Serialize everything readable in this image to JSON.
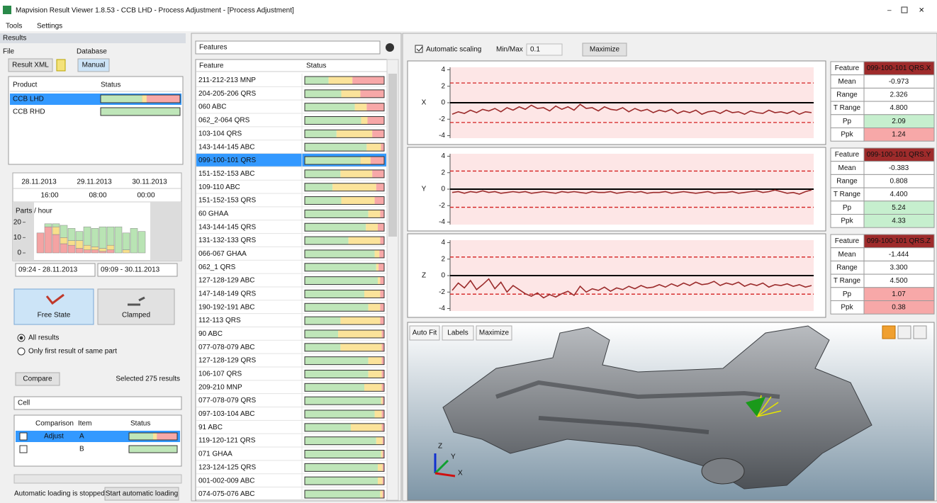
{
  "window": {
    "title": "Mapvision Result Viewer 1.8.53 - CCB LHD - Process Adjustment - [Process Adjustment]",
    "menu": [
      "Tools",
      "Settings"
    ]
  },
  "status_colors": [
    "#bfe6b9",
    "#fbe39a",
    "#f7a8a8"
  ],
  "results": {
    "title": "Results",
    "file_label": "File",
    "database_label": "Database",
    "result_xml": "Result XML",
    "manual": "Manual",
    "product_table": {
      "headers": [
        "Product",
        "Status"
      ],
      "selected": 0,
      "rows": [
        {
          "name": "CCB LHD",
          "status": [
            52,
            6,
            42
          ]
        },
        {
          "name": "CCB RHD",
          "status": [
            100,
            0,
            0
          ]
        }
      ]
    },
    "timeline": {
      "dates": [
        "28.11.2013",
        "29.11.2013",
        "30.11.2013"
      ],
      "times": [
        "16:00",
        "08:00",
        "00:00"
      ],
      "chart": {
        "type": "bar",
        "stacked": true,
        "ylabel": "Parts / hour",
        "ylim": [
          0,
          24
        ],
        "yticks": [
          0,
          10,
          20
        ],
        "series": [
          {
            "color": "#f4a3a3",
            "values": [
              13,
              17,
              12,
              6,
              5,
              3,
              2,
              2,
              1,
              2,
              0,
              0,
              0,
              0
            ]
          },
          {
            "color": "#f7df8a",
            "values": [
              0,
              0,
              5,
              4,
              3,
              5,
              3,
              2,
              2,
              3,
              0,
              2,
              0,
              0
            ]
          },
          {
            "color": "#b9e4b4",
            "values": [
              0,
              2,
              2,
              8,
              8,
              6,
              12,
              12,
              14,
              12,
              17,
              11,
              16,
              14
            ]
          }
        ]
      }
    },
    "date_from": "09:24 - 28.11.2013",
    "date_to": "09:09 - 30.11.2013",
    "modes": [
      "Free State",
      "Clamped"
    ],
    "radios": [
      "All results",
      "Only first result of same part"
    ],
    "compare": "Compare",
    "selected_results": "Selected 275 results",
    "cell": "Cell",
    "comparison_table": {
      "headers": [
        "Comparison",
        "Item",
        "Status"
      ],
      "rows": [
        {
          "comparison": "Adjust",
          "item": "A",
          "status": [
            50,
            8,
            42
          ]
        },
        {
          "comparison": null,
          "item": "B",
          "status": [
            100,
            0,
            0
          ]
        }
      ]
    },
    "loading_status": "Automatic loading is stopped",
    "start_loading": "Start automatic loading"
  },
  "features": {
    "dropdown": "Features",
    "headers": [
      "Feature",
      "Status"
    ],
    "selected": 6,
    "rows": [
      {
        "name": "211-212-213 MNP",
        "status": [
          30,
          30,
          40
        ]
      },
      {
        "name": "204-205-206 QRS",
        "status": [
          46,
          24,
          30
        ]
      },
      {
        "name": "060 ABC",
        "status": [
          63,
          15,
          22
        ]
      },
      {
        "name": "062_2-064 QRS",
        "status": [
          71,
          8,
          21
        ]
      },
      {
        "name": "103-104 QRS",
        "status": [
          40,
          45,
          15
        ]
      },
      {
        "name": "143-144-145 ABC",
        "status": [
          78,
          18,
          4
        ]
      },
      {
        "name": "099-100-101 QRS",
        "status": [
          70,
          13,
          17
        ]
      },
      {
        "name": "151-152-153 ABC",
        "status": [
          45,
          40,
          15
        ]
      },
      {
        "name": "109-110 ABC",
        "status": [
          35,
          55,
          10
        ]
      },
      {
        "name": "151-152-153 QRS",
        "status": [
          46,
          42,
          12
        ]
      },
      {
        "name": "60 GHAA",
        "status": [
          80,
          15,
          5
        ]
      },
      {
        "name": "143-144-145 QRS",
        "status": [
          77,
          15,
          8
        ]
      },
      {
        "name": "131-132-133 QRS",
        "status": [
          55,
          40,
          5
        ]
      },
      {
        "name": "066-067 GHAA",
        "status": [
          88,
          6,
          6
        ]
      },
      {
        "name": "062_1 QRS",
        "status": [
          90,
          3,
          7
        ]
      },
      {
        "name": "127-128-129 ABC",
        "status": [
          92,
          3,
          5
        ]
      },
      {
        "name": "147-148-149 QRS",
        "status": [
          75,
          20,
          5
        ]
      },
      {
        "name": "190-192-191 ABC",
        "status": [
          80,
          15,
          5
        ]
      },
      {
        "name": "112-113 QRS",
        "status": [
          45,
          50,
          5
        ]
      },
      {
        "name": "90 ABC",
        "status": [
          42,
          55,
          3
        ]
      },
      {
        "name": "077-078-079 ABC",
        "status": [
          45,
          52,
          3
        ]
      },
      {
        "name": "127-128-129 QRS",
        "status": [
          80,
          17,
          3
        ]
      },
      {
        "name": "106-107 QRS",
        "status": [
          80,
          17,
          3
        ]
      },
      {
        "name": "209-210 MNP",
        "status": [
          75,
          22,
          3
        ]
      },
      {
        "name": "077-078-079 QRS",
        "status": [
          96,
          2,
          2
        ]
      },
      {
        "name": "097-103-104 ABC",
        "status": [
          88,
          9,
          3
        ]
      },
      {
        "name": "91 ABC",
        "status": [
          58,
          39,
          3
        ]
      },
      {
        "name": "119-120-121 QRS",
        "status": [
          90,
          8,
          2
        ]
      },
      {
        "name": "071 GHAA",
        "status": [
          96,
          2,
          2
        ]
      },
      {
        "name": "123-124-125 QRS",
        "status": [
          92,
          6,
          2
        ]
      },
      {
        "name": "001-002-009 ABC",
        "status": [
          92,
          6,
          2
        ]
      },
      {
        "name": "074-075-076 ABC",
        "status": [
          95,
          3,
          2
        ]
      }
    ]
  },
  "charts_toolbar": {
    "automatic_scaling": "Automatic scaling",
    "minmax_label": "Min/Max",
    "minmax_value": "0.1",
    "maximize": "Maximize"
  },
  "chart_data": [
    {
      "type": "line",
      "ylabel": "X",
      "ylim": [
        -4.3,
        4.3
      ],
      "yticks": [
        4,
        2,
        0,
        -2,
        -4
      ],
      "limits": [
        -2.4,
        2.4
      ],
      "nominal": 0,
      "color": "#9b2b2b",
      "values": [
        -1.4,
        -1.1,
        -1.3,
        -0.9,
        -1.2,
        -0.8,
        -1.0,
        -0.7,
        -1.1,
        -0.6,
        -0.9,
        -0.5,
        -0.8,
        -0.3,
        -0.7,
        -0.6,
        -1.0,
        -0.4,
        -0.8,
        -0.5,
        -0.9,
        -0.2,
        -0.7,
        -0.6,
        -1.0,
        -0.5,
        -0.8,
        -0.9,
        -0.6,
        -1.1,
        -0.7,
        -1.0,
        -0.8,
        -1.2,
        -0.9,
        -1.1,
        -0.8,
        -1.3,
        -1.0,
        -1.2,
        -0.9,
        -1.4,
        -1.1,
        -1.0,
        -1.3,
        -0.9,
        -1.2,
        -1.1,
        -1.4,
        -1.0,
        -1.2,
        -1.3,
        -0.9,
        -1.2,
        -1.1,
        -1.3,
        -1.0,
        -1.4,
        -1.1,
        -1.2
      ]
    },
    {
      "type": "line",
      "ylabel": "Y",
      "ylim": [
        -4.3,
        4.3
      ],
      "yticks": [
        4,
        2,
        0,
        -2,
        -4
      ],
      "limits": [
        -2.2,
        2.2
      ],
      "nominal": 0,
      "color": "#9b2b2b",
      "values": [
        -0.4,
        -0.3,
        -0.5,
        -0.3,
        -0.4,
        -0.2,
        -0.4,
        -0.3,
        -0.5,
        -0.4,
        -0.3,
        -0.4,
        -0.3,
        -0.5,
        -0.4,
        -0.3,
        -0.4,
        -0.5,
        -0.3,
        -0.4,
        -0.3,
        -0.4,
        -0.5,
        -0.3,
        -0.4,
        -0.4,
        -0.3,
        -0.5,
        -0.4,
        -0.3,
        -0.4,
        -0.3,
        -0.5,
        -0.4,
        -0.4,
        -0.3,
        -0.5,
        -0.4,
        -0.3,
        -0.4,
        -0.5,
        -0.4,
        -0.3,
        -0.5,
        -0.4,
        -0.4,
        -0.3,
        -0.5,
        -0.4,
        -0.3,
        -0.2,
        -0.4,
        -0.3,
        -0.1,
        -0.3,
        -0.5,
        -0.4,
        -0.6,
        -0.3,
        -0.1
      ]
    },
    {
      "type": "line",
      "ylabel": "Z",
      "ylim": [
        -4.3,
        4.3
      ],
      "yticks": [
        4,
        2,
        0,
        -2,
        -4
      ],
      "limits": [
        -2.25,
        2.25
      ],
      "nominal": 0,
      "color": "#9b2b2b",
      "values": [
        -1.8,
        -0.9,
        -1.5,
        -0.6,
        -1.7,
        -1.1,
        -0.4,
        -1.6,
        -0.8,
        -2.0,
        -1.2,
        -1.7,
        -2.2,
        -2.5,
        -2.1,
        -2.7,
        -2.3,
        -2.6,
        -2.2,
        -1.9,
        -2.4,
        -1.3,
        -2.0,
        -1.6,
        -1.8,
        -1.4,
        -1.9,
        -1.5,
        -1.7,
        -1.3,
        -1.6,
        -1.2,
        -1.5,
        -1.4,
        -1.1,
        -1.4,
        -1.0,
        -1.3,
        -0.9,
        -1.2,
        -0.8,
        -1.1,
        -1.0,
        -0.7,
        -1.2,
        -0.9,
        -1.1,
        -0.8,
        -1.3,
        -1.0,
        -1.2,
        -0.9,
        -1.4,
        -1.1,
        -1.2,
        -1.0,
        -1.3,
        -1.1,
        -1.4,
        -1.2
      ]
    }
  ],
  "stats": [
    {
      "rows": [
        {
          "label": "Feature",
          "value": "099-100-101 QRS.X"
        },
        {
          "label": "Mean",
          "value": "-0.973"
        },
        {
          "label": "Range",
          "value": "2.326"
        },
        {
          "label": "T Range",
          "value": "4.800"
        },
        {
          "label": "Pp",
          "value": "2.09",
          "color": "#c6efce"
        },
        {
          "label": "Ppk",
          "value": "1.24",
          "color": "#f7a8a8"
        }
      ]
    },
    {
      "rows": [
        {
          "label": "Feature",
          "value": "099-100-101 QRS.Y"
        },
        {
          "label": "Mean",
          "value": "-0.383"
        },
        {
          "label": "Range",
          "value": "0.808"
        },
        {
          "label": "T Range",
          "value": "4.400"
        },
        {
          "label": "Pp",
          "value": "5.24",
          "color": "#c6efce"
        },
        {
          "label": "Ppk",
          "value": "4.33",
          "color": "#c6efce"
        }
      ]
    },
    {
      "rows": [
        {
          "label": "Feature",
          "value": "099-100-101 QRS.Z"
        },
        {
          "label": "Mean",
          "value": "-1.444"
        },
        {
          "label": "Range",
          "value": "3.300"
        },
        {
          "label": "T Range",
          "value": "4.500"
        },
        {
          "label": "Pp",
          "value": "1.07",
          "color": "#f7a8a8"
        },
        {
          "label": "Ppk",
          "value": "0.38",
          "color": "#f7a8a8"
        }
      ]
    }
  ],
  "view3d": {
    "buttons": [
      "Auto Fit",
      "Labels",
      "Maximize"
    ],
    "axes": [
      "Z",
      "Y",
      "X"
    ]
  }
}
